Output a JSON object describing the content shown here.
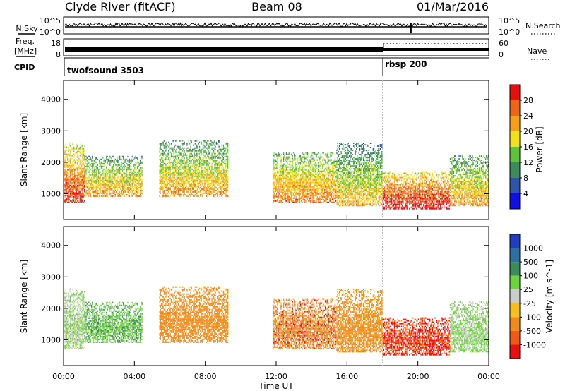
{
  "header": {
    "station": "Clyde River (fitACF)",
    "beam": "Beam 08",
    "date": "01/Mar/2016"
  },
  "noise_panel": {
    "left_label": "N.Sky",
    "left_ticks": [
      "10^5",
      "10^0"
    ],
    "right_ticks": [
      "10^5",
      "10^0"
    ],
    "right_label": "N.Search"
  },
  "freq_panel": {
    "left_label_top": "Freq.",
    "left_label_unit": "[MHz]",
    "left_ticks": [
      "18",
      "8"
    ],
    "right_ticks": [
      "60",
      "0"
    ],
    "right_label": "Nave"
  },
  "cpid_panel": {
    "label": "CPID",
    "programs": [
      {
        "name": "twofsound",
        "id": "3503",
        "start_hour": 0
      },
      {
        "name": "rbsp",
        "id": "200",
        "start_hour": 18
      }
    ]
  },
  "power_panel": {
    "ylabel": "Slant Range [km]",
    "yticks": [
      "1000",
      "2000",
      "3000",
      "4000"
    ],
    "colorbar_label": "Power [dB]",
    "colorbar_ticks": [
      "4",
      "8",
      "12",
      "16",
      "20",
      "24",
      "28"
    ],
    "colors": [
      "#1010e6",
      "#2e55a8",
      "#3f8a5c",
      "#5ec23b",
      "#f2e01a",
      "#f5a01d",
      "#f06417",
      "#e61010"
    ]
  },
  "velocity_panel": {
    "ylabel": "Slant Range [km]",
    "yticks": [
      "1000",
      "2000",
      "3000",
      "4000"
    ],
    "colorbar_label": "Velocity [m s^-1]",
    "colorbar_ticks": [
      "1000",
      "500",
      "100",
      "25",
      "-25",
      "-100",
      "-500",
      "-1000"
    ],
    "colors": [
      "#1f3fc0",
      "#2f6fa0",
      "#3e8a5a",
      "#6fd23f",
      "#cccccc",
      "#f5c020",
      "#f08a1a",
      "#f05a15",
      "#e61010"
    ]
  },
  "xaxis": {
    "label": "Time UT",
    "ticks": [
      "00:00",
      "04:00",
      "08:00",
      "12:00",
      "16:00",
      "20:00",
      "00:00"
    ]
  },
  "chart_data": {
    "type": "heatmap",
    "x_range_hours": [
      0,
      24
    ],
    "y_range_km": [
      180,
      4600
    ],
    "power_range_db": [
      0,
      32
    ],
    "echo_regions": [
      {
        "t0": 0.0,
        "t1": 1.2,
        "r0": 700,
        "r1": 2600,
        "power_db": 24,
        "velocity": 30
      },
      {
        "t0": 1.2,
        "t1": 4.4,
        "r0": 900,
        "r1": 2200,
        "power_db": 18,
        "velocity": 80
      },
      {
        "t0": 5.4,
        "t1": 9.3,
        "r0": 900,
        "r1": 2700,
        "power_db": 18,
        "velocity": -300
      },
      {
        "t0": 11.8,
        "t1": 15.4,
        "r0": 700,
        "r1": 2300,
        "power_db": 20,
        "velocity": -400
      },
      {
        "t0": 15.4,
        "t1": 18.0,
        "r0": 600,
        "r1": 2600,
        "power_db": 16,
        "velocity": -150
      },
      {
        "t0": 18.0,
        "t1": 21.8,
        "r0": 500,
        "r1": 1700,
        "power_db": 26,
        "velocity": -600
      },
      {
        "t0": 21.8,
        "t1": 24.0,
        "r0": 600,
        "r1": 2200,
        "power_db": 18,
        "velocity": 40
      }
    ]
  }
}
